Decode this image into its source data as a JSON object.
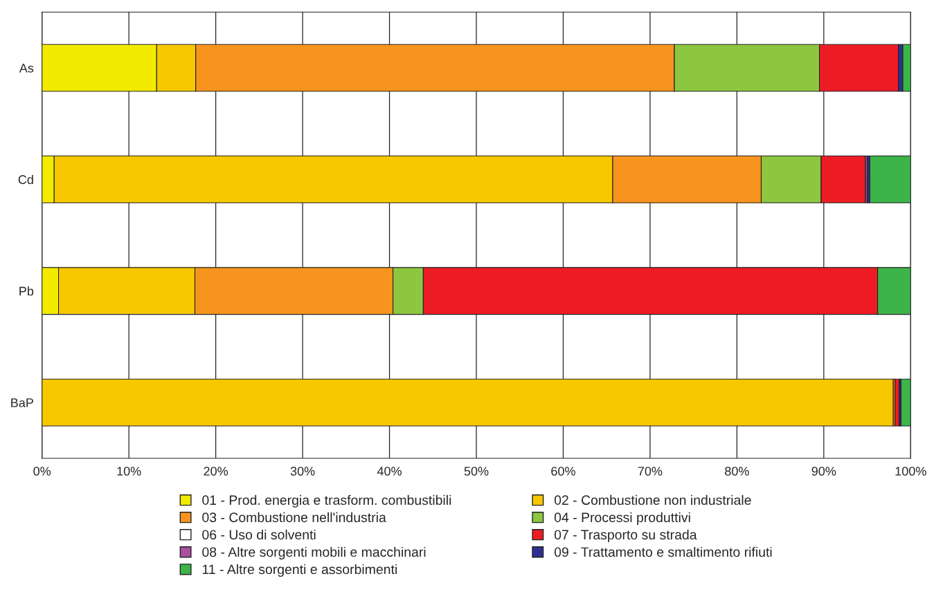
{
  "chart_data": {
    "type": "bar",
    "orientation": "horizontal",
    "stacked": true,
    "categories": [
      "As",
      "Cd",
      "Pb",
      "BaP"
    ],
    "xlim": [
      0,
      100
    ],
    "xticks": [
      {
        "value": 0,
        "label": "0%"
      },
      {
        "value": 10,
        "label": "10%"
      },
      {
        "value": 20,
        "label": "20%"
      },
      {
        "value": 30,
        "label": "30%"
      },
      {
        "value": 40,
        "label": "40%"
      },
      {
        "value": 50,
        "label": "50%"
      },
      {
        "value": 60,
        "label": "60%"
      },
      {
        "value": 70,
        "label": "70%"
      },
      {
        "value": 80,
        "label": "80%"
      },
      {
        "value": 90,
        "label": "90%"
      },
      {
        "value": 100,
        "label": "100%"
      }
    ],
    "grid": "x",
    "legend": "bottom",
    "series": [
      {
        "name": "01 - Prod. energia e trasform. combustibili",
        "color": "#f2ea00",
        "values": [
          13.2,
          1.4,
          1.9,
          0
        ]
      },
      {
        "name": "02 - Combustione non industriale",
        "color": "#f7c700",
        "values": [
          4.5,
          64.3,
          15.7,
          98.0
        ]
      },
      {
        "name": "03 - Combustione nell'industria",
        "color": "#f7941d",
        "values": [
          55.1,
          17.1,
          22.8,
          0.2
        ]
      },
      {
        "name": "04 - Processi produttivi",
        "color": "#8dc63f",
        "values": [
          16.7,
          6.9,
          3.5,
          0
        ]
      },
      {
        "name": "06 - Uso di solventi",
        "color": "#ffffff",
        "values": [
          0,
          0,
          0,
          0
        ]
      },
      {
        "name": "07 - Trasporto su strada",
        "color": "#ed1c24",
        "values": [
          9.1,
          5.1,
          52.3,
          0.5
        ]
      },
      {
        "name": "08 - Altre sorgenti mobili e macchinari",
        "color": "#a84fa0",
        "values": [
          0,
          0.2,
          0,
          0
        ]
      },
      {
        "name": "09 - Trattamento e smaltimento rifiuti",
        "color": "#2e3192",
        "values": [
          0.5,
          0.3,
          0,
          0.2
        ]
      },
      {
        "name": "11 - Altre sorgenti e assorbimenti",
        "color": "#3cb44a",
        "values": [
          0.9,
          4.7,
          3.8,
          1.1
        ]
      }
    ]
  }
}
